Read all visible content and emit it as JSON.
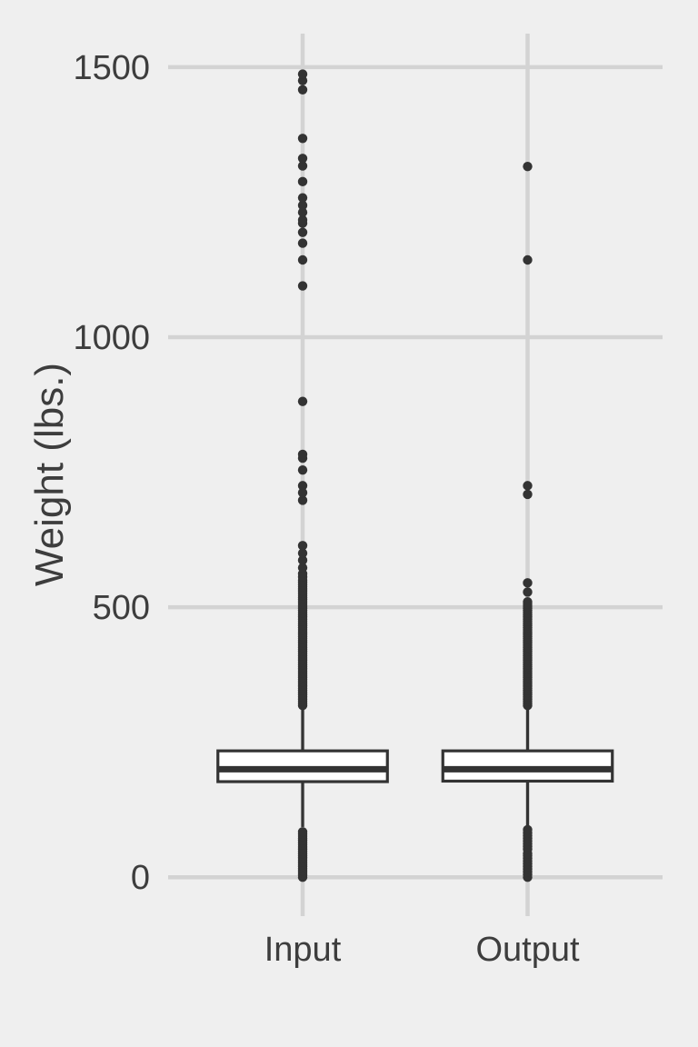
{
  "chart_data": {
    "type": "boxplot",
    "title": "",
    "xlabel": "",
    "ylabel": "Weight (lbs.)",
    "categories": [
      "Input",
      "Output"
    ],
    "yticks": [
      0,
      500,
      1000,
      1500
    ],
    "ylim": [
      -72,
      1562
    ],
    "grid": "major-only",
    "legend": "none",
    "colors": {
      "background": "#EFEFEF",
      "gridline": "#D3D3D3",
      "stroke": "#333333",
      "box_fill": "#FFFFFF",
      "text": "#3D3D3D"
    },
    "series": [
      {
        "name": "Input",
        "whisker_low": 93,
        "q1": 177,
        "median": 200,
        "q3": 234,
        "whisker_high": 317,
        "outliers_high": [
          318,
          322,
          326,
          330,
          334,
          338,
          342,
          346,
          350,
          354,
          358,
          362,
          366,
          370,
          374,
          378,
          382,
          386,
          390,
          394,
          398,
          402,
          406,
          410,
          414,
          418,
          422,
          426,
          430,
          434,
          438,
          442,
          446,
          450,
          454,
          458,
          462,
          466,
          470,
          474,
          478,
          482,
          486,
          490,
          494,
          498,
          502,
          506,
          510,
          514,
          518,
          522,
          526,
          530,
          534,
          538,
          542,
          546,
          550,
          556,
          562,
          573,
          587,
          600,
          614,
          698,
          712,
          725,
          754,
          776,
          783,
          881,
          1095,
          1143,
          1174,
          1194,
          1211,
          1217,
          1231,
          1244,
          1258,
          1288,
          1317,
          1331,
          1368,
          1458,
          1475,
          1487
        ],
        "outliers_low": [
          0,
          4,
          8,
          12,
          16,
          20,
          24,
          28,
          32,
          36,
          40,
          44,
          48,
          52,
          56,
          60,
          64,
          68,
          72,
          76,
          80,
          84
        ]
      },
      {
        "name": "Output",
        "whisker_low": 96,
        "q1": 178,
        "median": 200,
        "q3": 234,
        "whisker_high": 317,
        "outliers_high": [
          318,
          322,
          326,
          330,
          334,
          338,
          342,
          346,
          350,
          354,
          358,
          362,
          366,
          370,
          374,
          378,
          382,
          386,
          390,
          394,
          398,
          402,
          406,
          410,
          414,
          418,
          422,
          426,
          430,
          434,
          438,
          442,
          446,
          450,
          454,
          458,
          462,
          466,
          470,
          474,
          478,
          482,
          486,
          490,
          494,
          498,
          502,
          506,
          510,
          528,
          545,
          709,
          725,
          1143,
          1316
        ],
        "outliers_low": [
          0,
          5,
          10,
          15,
          20,
          25,
          30,
          35,
          40,
          44,
          52,
          57,
          62,
          67,
          72,
          77,
          82,
          88
        ]
      }
    ]
  }
}
